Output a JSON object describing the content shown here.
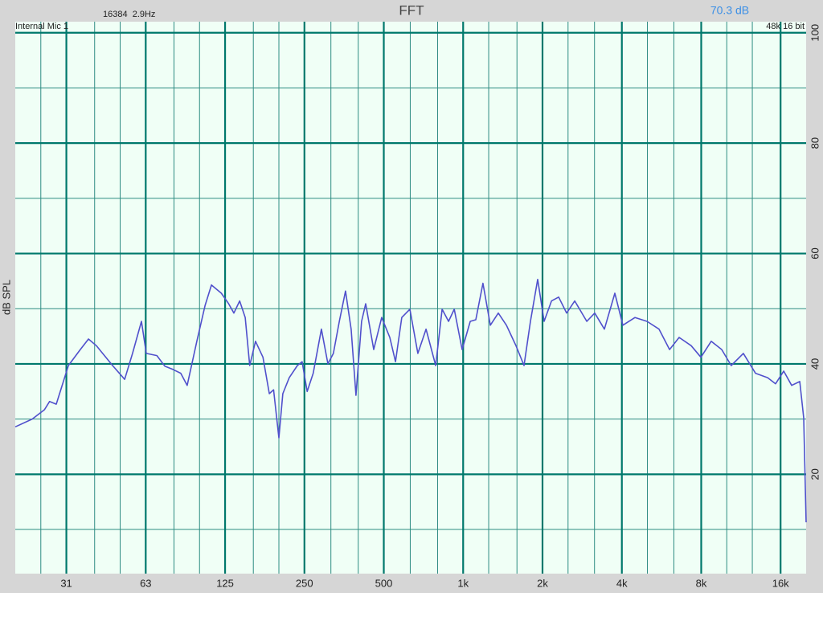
{
  "chart_data": {
    "type": "line",
    "title": "FFT",
    "fft_info": "16384  2.9Hz",
    "level": "70.3 dB",
    "input": "Internal Mic 1",
    "format": "48k 16 bit",
    "y_label": "dB SPL",
    "xscale": "log",
    "color": "#5050cc",
    "grid": true,
    "xlim": [
      20,
      20000
    ],
    "ylim": [
      2,
      102
    ],
    "xticks": [
      {
        "value": 31.25,
        "label": "31"
      },
      {
        "value": 62.5,
        "label": "63"
      },
      125,
      250,
      500,
      {
        "value": 1000,
        "label": "1k"
      },
      {
        "value": 2000,
        "label": "2k"
      },
      {
        "value": 4000,
        "label": "4k"
      },
      {
        "value": 8000,
        "label": "8k"
      },
      {
        "value": 16000,
        "label": "16k"
      }
    ],
    "yticks": [
      20,
      40,
      60,
      80,
      100
    ],
    "xgrid_minor": [
      25,
      40,
      50,
      80,
      100,
      160,
      200,
      315,
      400,
      630,
      800,
      1250,
      1600,
      2500,
      3150,
      5000,
      6300,
      10000,
      12500
    ],
    "ygrid_minor": [
      10,
      30,
      50,
      70,
      90
    ],
    "x": [
      20,
      23.2,
      25.8,
      27,
      28.6,
      31.8,
      35.3,
      37.9,
      40.6,
      46.8,
      52,
      55.7,
      60.2,
      62.8,
      68.9,
      73.8,
      79.2,
      84.9,
      89.8,
      97.7,
      105,
      111,
      121,
      129,
      135,
      142,
      149,
      155,
      163,
      174,
      184,
      191,
      200,
      207,
      219,
      235,
      245,
      256,
      270,
      290,
      307,
      322,
      339,
      358,
      376,
      392,
      412,
      427,
      458,
      491,
      527,
      554,
      585,
      628,
      673,
      723,
      787,
      832,
      880,
      925,
      991,
      1064,
      1117,
      1189,
      1268,
      1359,
      1459,
      1586,
      1702,
      1800,
      1918,
      2028,
      2163,
      2303,
      2468,
      2650,
      2944,
      3156,
      3434,
      3761,
      4036,
      4487,
      4982,
      5534,
      6067,
      6596,
      7329,
      7977,
      8730,
      9570,
      10400,
      11560,
      12850,
      14290,
      15320,
      16440,
      17620,
      18920,
      19590,
      20000
    ],
    "values": [
      28.6,
      30,
      31.7,
      33.2,
      32.7,
      39.7,
      42.6,
      44.5,
      43.3,
      39.7,
      37.2,
      41.9,
      47.7,
      41.9,
      41.5,
      39.6,
      39,
      38.3,
      36.1,
      44.1,
      50.6,
      54.3,
      52.8,
      50.9,
      49.2,
      51.4,
      48.4,
      39.7,
      44.1,
      41.2,
      34.6,
      35.3,
      26.6,
      34.6,
      37.5,
      39.7,
      40.4,
      35,
      38.3,
      46.3,
      40,
      41.9,
      47.7,
      53.2,
      46.3,
      34.3,
      47.7,
      50.9,
      42.6,
      48.4,
      44.8,
      40.4,
      48.4,
      49.9,
      41.9,
      46.3,
      39.7,
      49.9,
      47.7,
      49.9,
      42.6,
      47.7,
      48,
      54.6,
      47,
      49.2,
      47,
      43.3,
      39.7,
      47.7,
      55.3,
      47.7,
      51.4,
      52.1,
      49.2,
      51.4,
      47.7,
      49.2,
      46.3,
      52.8,
      47,
      48.4,
      47.7,
      46.3,
      42.6,
      44.8,
      43.3,
      41.2,
      44.1,
      42.6,
      39.7,
      41.9,
      38.3,
      37.5,
      36.4,
      38.7,
      36.1,
      36.8,
      30.2,
      11.3
    ]
  }
}
